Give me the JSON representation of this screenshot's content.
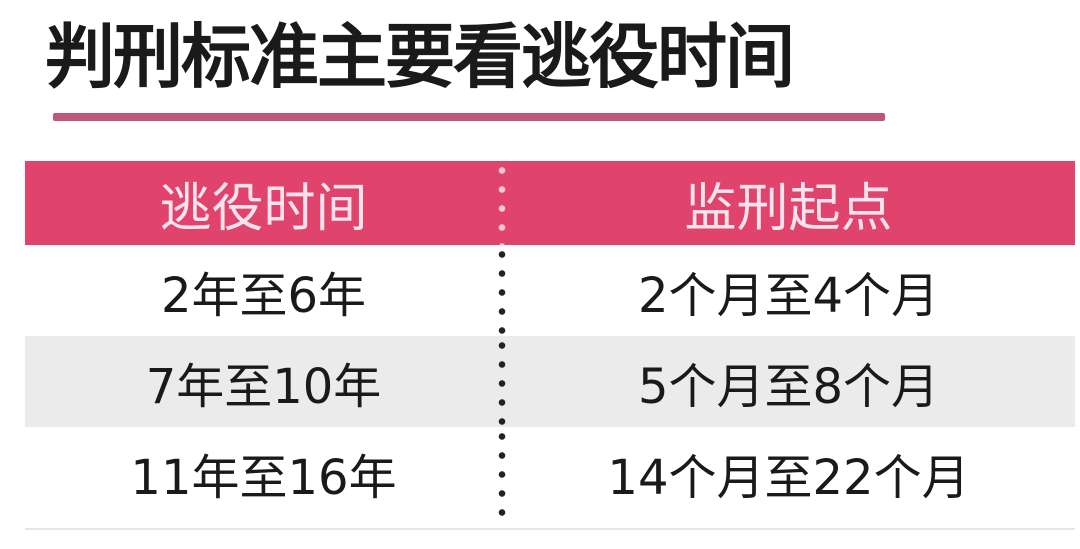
{
  "title": "判刑标准主要看逃役时间",
  "colors": {
    "header_bg": "#e0436c",
    "underline": "#c0577b",
    "alt_row": "#ebebeb"
  },
  "table": {
    "headers": [
      "逃役时间",
      "监刑起点"
    ],
    "rows": [
      [
        "2年至6年",
        "2个月至4个月"
      ],
      [
        "7年至10年",
        "5个月至8个月"
      ],
      [
        "11年至16年",
        "14个月至22个月"
      ]
    ]
  }
}
